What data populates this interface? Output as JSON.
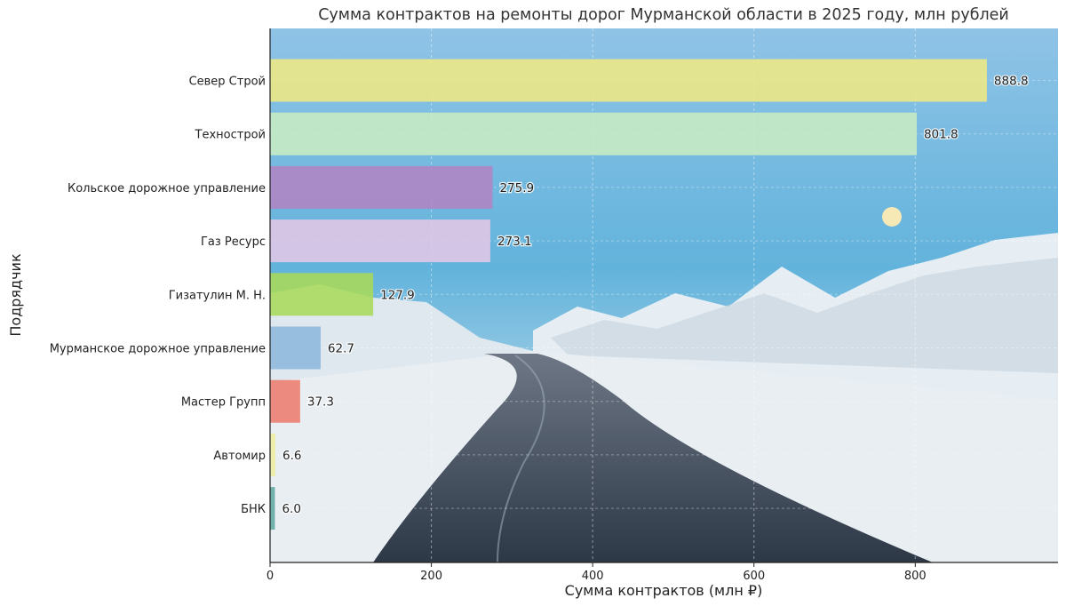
{
  "chart_data": {
    "type": "bar",
    "orientation": "horizontal",
    "title": "Сумма контрактов на ремонты дорог Мурманской области в 2025 году, млн рублей",
    "xlabel": "Сумма контрактов (млн ₽)",
    "ylabel": "Подрядчик",
    "xlim": [
      0,
      977
    ],
    "xticks": [
      0,
      200,
      400,
      600,
      800
    ],
    "grid": true,
    "categories": [
      "Север Строй",
      "Технострой",
      "Кольское дорожное управление",
      "Газ Ресурс",
      "Гизатулин М. Н.",
      "Мурманское дорожное управление",
      "Мастер Групп",
      "Автомир",
      "БНК"
    ],
    "values": [
      888.8,
      801.8,
      275.9,
      273.1,
      127.9,
      62.7,
      37.3,
      6.6,
      6.0
    ],
    "value_labels": [
      "888.8",
      "801.8",
      "275.9",
      "273.1",
      "127.9",
      "62.7",
      "37.3",
      "6.6",
      "6.0"
    ],
    "colors": [
      "#efe883",
      "#c9ecc4",
      "#b184c4",
      "#e3c7e6",
      "#a8d95a",
      "#8db7dc",
      "#ec7c70",
      "#edeea0",
      "#5fa8a0"
    ],
    "background": "photo of snowy winter road with forest and moon"
  }
}
